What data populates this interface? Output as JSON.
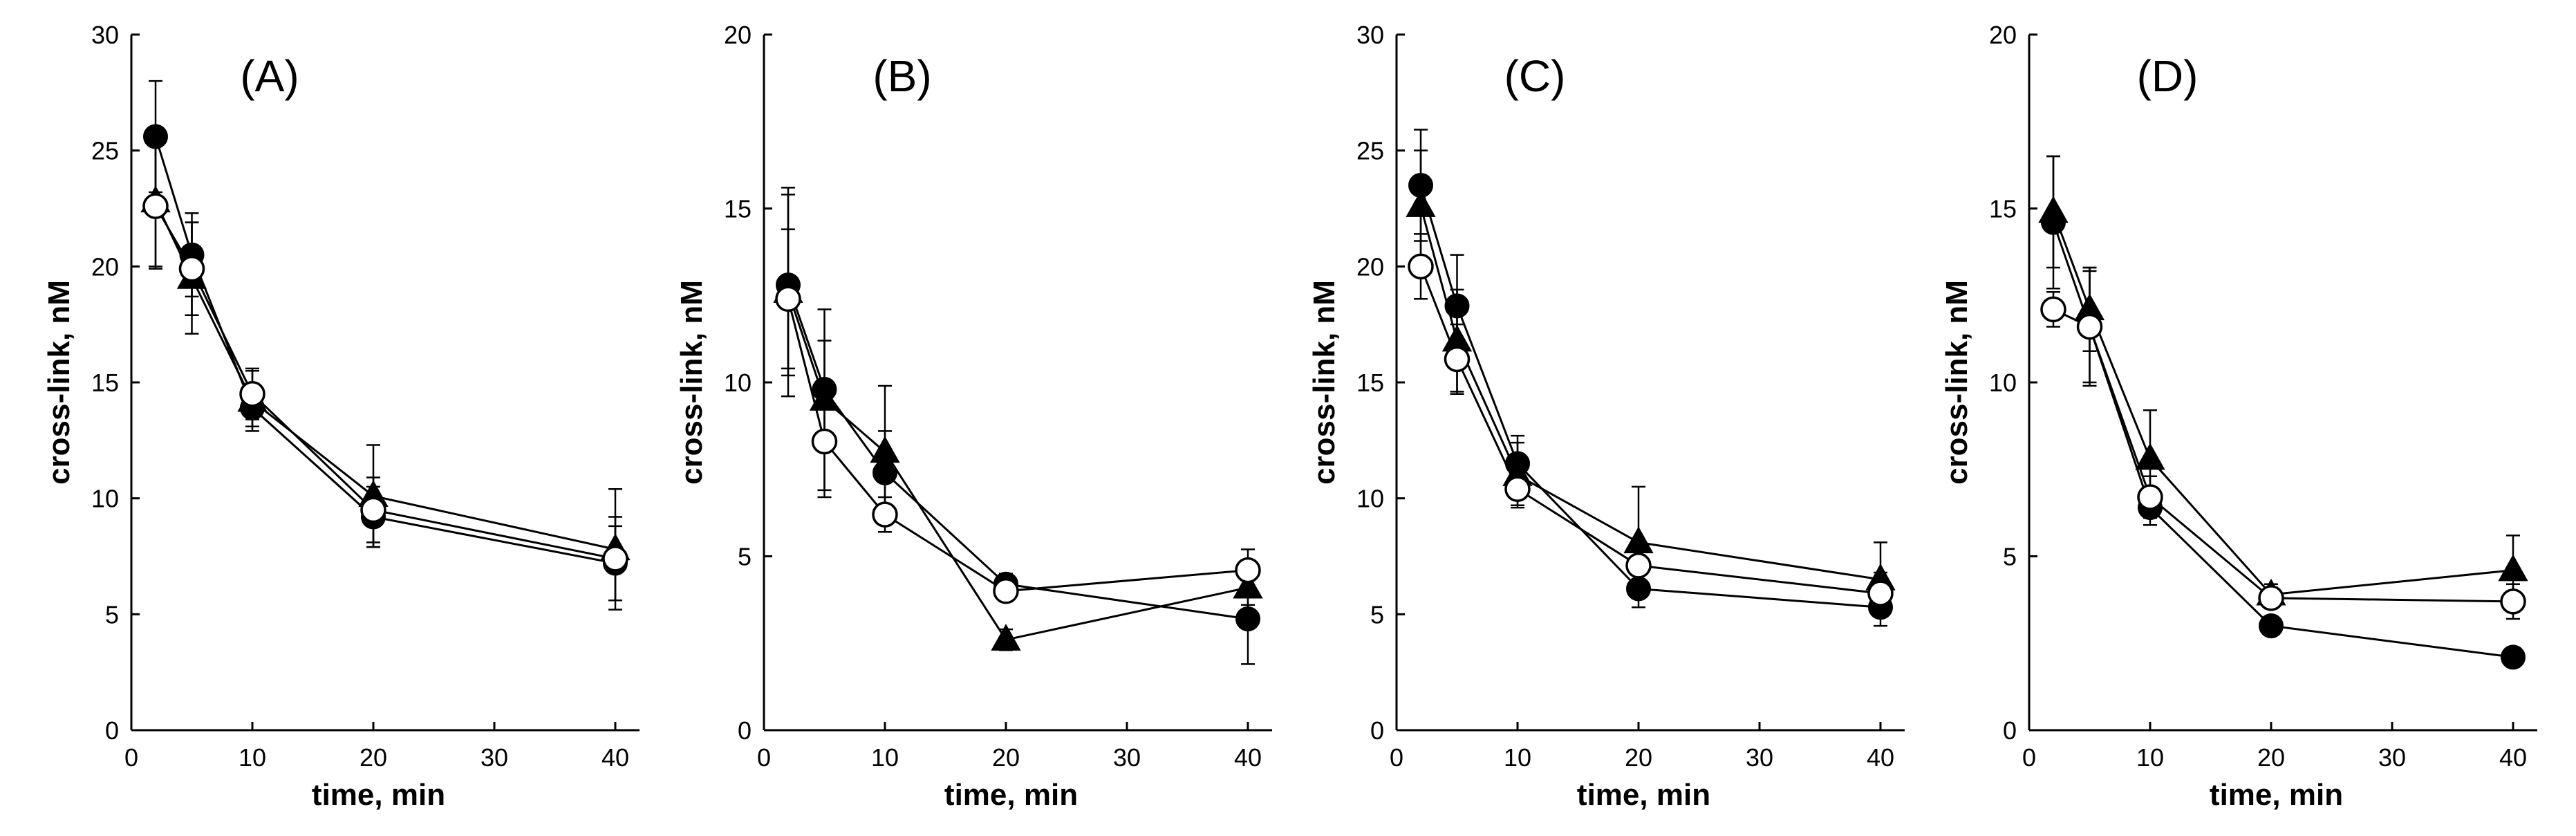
{
  "chart_data": [
    {
      "type": "scatter",
      "title": "(A)",
      "xlabel": "time, min",
      "ylabel": "cross-link, nM",
      "xlim": [
        0,
        42
      ],
      "ylim": [
        0,
        30
      ],
      "xticks": [
        0,
        10,
        20,
        30,
        40
      ],
      "yticks": [
        0,
        5,
        10,
        15,
        20,
        25,
        30
      ],
      "x": [
        2,
        5,
        10,
        20,
        40
      ],
      "series": [
        {
          "marker": "filled-circle",
          "values": [
            25.6,
            20.5,
            13.9,
            9.2,
            7.2
          ],
          "errors": [
            2.4,
            1.8,
            0.8,
            1.3,
            1.6
          ]
        },
        {
          "marker": "filled-triangle",
          "values": [
            22.8,
            19.5,
            14.2,
            10.1,
            7.8
          ],
          "errors": [
            2.8,
            2.4,
            1.3,
            2.2,
            2.6
          ]
        },
        {
          "marker": "open-circle",
          "values": [
            22.6,
            19.9,
            14.5,
            9.5,
            7.4
          ],
          "errors": [
            2.7,
            2.0,
            1.1,
            1.4,
            1.8
          ]
        }
      ]
    },
    {
      "type": "scatter",
      "title": "(B)",
      "xlabel": "time, min",
      "ylabel": "cross-link, nM",
      "xlim": [
        0,
        42
      ],
      "ylim": [
        0,
        20
      ],
      "xticks": [
        0,
        10,
        20,
        30,
        40
      ],
      "yticks": [
        0,
        5,
        10,
        15,
        20
      ],
      "x": [
        2,
        5,
        10,
        20,
        40
      ],
      "series": [
        {
          "marker": "filled-circle",
          "values": [
            12.8,
            9.8,
            7.4,
            4.2,
            3.2
          ],
          "errors": [
            2.6,
            1.4,
            1.2,
            0.3,
            1.3
          ]
        },
        {
          "marker": "filled-triangle",
          "values": [
            12.6,
            9.5,
            8.0,
            2.6,
            4.1
          ],
          "errors": [
            3.0,
            2.6,
            1.9,
            0.3,
            0.5
          ]
        },
        {
          "marker": "open-circle",
          "values": [
            12.4,
            8.3,
            6.2,
            4.0,
            4.6
          ],
          "errors": [
            2.0,
            1.6,
            0.5,
            0.3,
            0.6
          ]
        }
      ]
    },
    {
      "type": "scatter",
      "title": "(C)",
      "xlabel": "time, min",
      "ylabel": "cross-link, nM",
      "xlim": [
        0,
        42
      ],
      "ylim": [
        0,
        30
      ],
      "xticks": [
        0,
        10,
        20,
        30,
        40
      ],
      "yticks": [
        0,
        5,
        10,
        15,
        20,
        25,
        30
      ],
      "x": [
        2,
        5,
        10,
        20,
        40
      ],
      "series": [
        {
          "marker": "filled-circle",
          "values": [
            23.5,
            18.3,
            11.5,
            6.1,
            5.3
          ],
          "errors": [
            2.4,
            2.2,
            1.2,
            0.8,
            0.8
          ]
        },
        {
          "marker": "filled-triangle",
          "values": [
            22.6,
            16.8,
            11.0,
            8.1,
            6.5
          ],
          "errors": [
            2.4,
            2.2,
            1.4,
            2.4,
            1.6
          ]
        },
        {
          "marker": "open-circle",
          "values": [
            20.0,
            16.0,
            10.4,
            7.1,
            5.9
          ],
          "errors": [
            1.4,
            1.5,
            0.7,
            1.0,
            0.9
          ]
        }
      ]
    },
    {
      "type": "scatter",
      "title": "(D)",
      "xlabel": "time, min",
      "ylabel": "cross-link, nM",
      "xlim": [
        0,
        42
      ],
      "ylim": [
        0,
        20
      ],
      "xticks": [
        0,
        10,
        20,
        30,
        40
      ],
      "yticks": [
        0,
        5,
        10,
        15,
        20
      ],
      "x": [
        2,
        5,
        10,
        20,
        40
      ],
      "series": [
        {
          "marker": "filled-circle",
          "values": [
            14.6,
            11.6,
            6.4,
            3.0,
            2.1
          ],
          "errors": [
            1.9,
            1.6,
            0.5,
            0.2,
            0.2
          ]
        },
        {
          "marker": "filled-triangle",
          "values": [
            14.9,
            12.1,
            7.8,
            3.9,
            4.6
          ],
          "errors": [
            1.6,
            1.2,
            1.4,
            0.3,
            1.0
          ]
        },
        {
          "marker": "open-circle",
          "values": [
            12.1,
            11.6,
            6.7,
            3.8,
            3.7
          ],
          "errors": [
            0.5,
            1.7,
            0.6,
            0.3,
            0.5
          ]
        }
      ]
    }
  ]
}
